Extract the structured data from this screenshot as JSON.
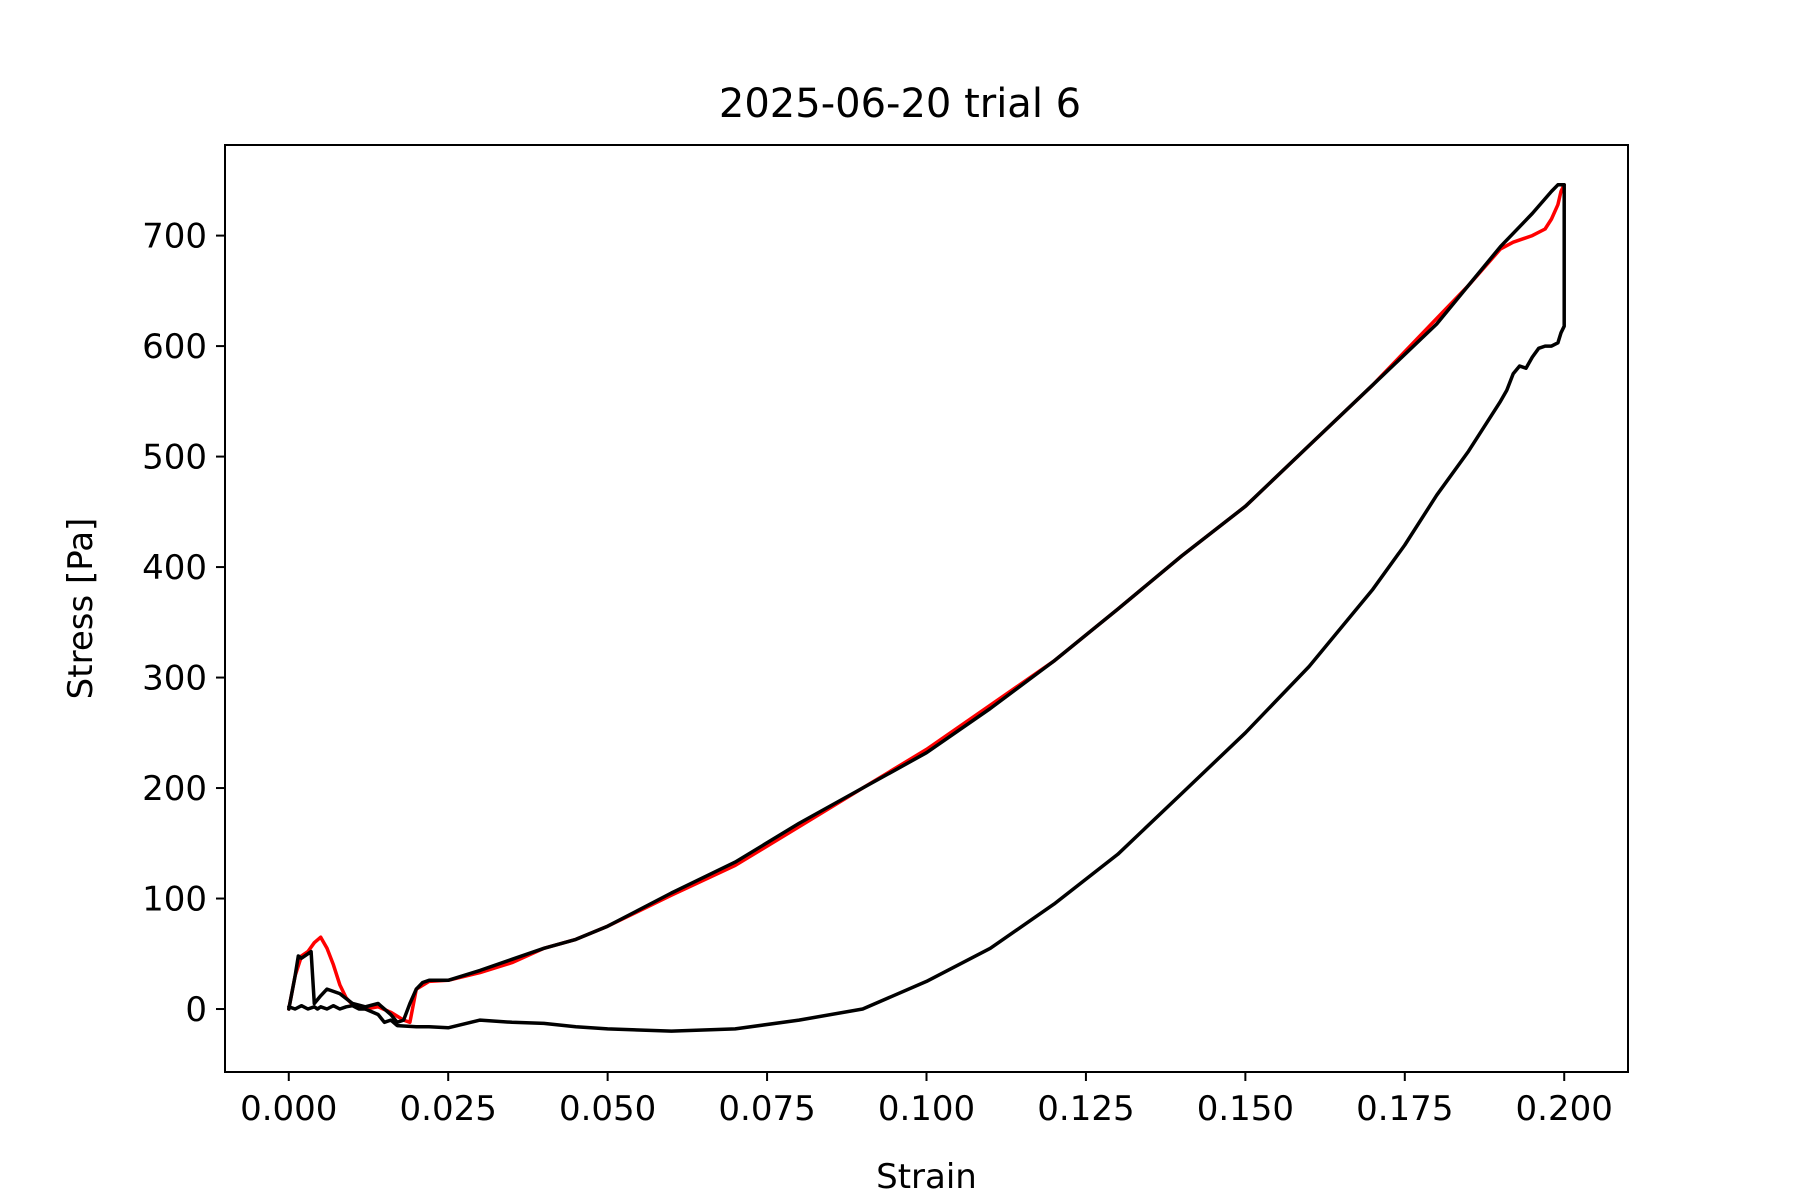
{
  "chart_data": {
    "type": "line",
    "title": "2025-06-20 trial 6",
    "xlabel": "Strain",
    "ylabel": "Stress [Pa]",
    "xlim": [
      -0.01,
      0.21
    ],
    "ylim": [
      -57,
      782
    ],
    "xticks": [
      0.0,
      0.025,
      0.05,
      0.075,
      0.1,
      0.125,
      0.15,
      0.175,
      0.2
    ],
    "xtick_labels": [
      "0.000",
      "0.025",
      "0.050",
      "0.075",
      "0.100",
      "0.125",
      "0.150",
      "0.175",
      "0.200"
    ],
    "yticks": [
      0,
      100,
      200,
      300,
      400,
      500,
      600,
      700
    ],
    "ytick_labels": [
      "0",
      "100",
      "200",
      "300",
      "400",
      "500",
      "600",
      "700"
    ],
    "grid": false,
    "series": [
      {
        "color": "#ff0000",
        "x": [
          0.0,
          0.001,
          0.002,
          0.003,
          0.004,
          0.005,
          0.006,
          0.007,
          0.008,
          0.009,
          0.01,
          0.012,
          0.014,
          0.016,
          0.018,
          0.019,
          0.02,
          0.022,
          0.025,
          0.03,
          0.035,
          0.04,
          0.045,
          0.05,
          0.06,
          0.07,
          0.08,
          0.09,
          0.1,
          0.11,
          0.12,
          0.13,
          0.14,
          0.15,
          0.16,
          0.17,
          0.18,
          0.185,
          0.19,
          0.192,
          0.195,
          0.197,
          0.198,
          0.199,
          0.1995,
          0.2
        ],
        "y": [
          0,
          30,
          48,
          52,
          60,
          65,
          55,
          40,
          22,
          10,
          4,
          0,
          2,
          -3,
          -10,
          -12,
          18,
          25,
          26,
          33,
          42,
          55,
          63,
          75,
          103,
          130,
          165,
          200,
          235,
          275,
          315,
          362,
          410,
          455,
          510,
          565,
          625,
          655,
          688,
          694,
          700,
          706,
          715,
          728,
          740,
          746
        ]
      },
      {
        "color": "#000000",
        "x": [
          0.0,
          0.001,
          0.0015,
          0.002,
          0.003,
          0.0035,
          0.004,
          0.005,
          0.006,
          0.008,
          0.01,
          0.012,
          0.014,
          0.016,
          0.017,
          0.018,
          0.019,
          0.02,
          0.021,
          0.022,
          0.025,
          0.03,
          0.035,
          0.04,
          0.045,
          0.05,
          0.06,
          0.07,
          0.08,
          0.09,
          0.1,
          0.11,
          0.12,
          0.13,
          0.14,
          0.15,
          0.16,
          0.17,
          0.18,
          0.185,
          0.19,
          0.195,
          0.198,
          0.199,
          0.2,
          0.2,
          0.2,
          0.1995,
          0.199,
          0.198,
          0.197,
          0.196,
          0.195,
          0.194,
          0.193,
          0.192,
          0.191,
          0.19,
          0.185,
          0.18,
          0.175,
          0.17,
          0.16,
          0.15,
          0.14,
          0.13,
          0.12,
          0.11,
          0.1,
          0.09,
          0.08,
          0.07,
          0.06,
          0.05,
          0.045,
          0.04,
          0.035,
          0.03,
          0.025,
          0.022,
          0.02,
          0.017,
          0.016,
          0.015,
          0.014,
          0.012,
          0.011,
          0.01,
          0.009,
          0.008,
          0.007,
          0.006,
          0.005,
          0.0045,
          0.004,
          0.003,
          0.002,
          0.001,
          0.0
        ],
        "y": [
          0,
          30,
          48,
          46,
          50,
          52,
          5,
          12,
          18,
          14,
          5,
          2,
          5,
          -5,
          -12,
          -10,
          5,
          18,
          24,
          26,
          26,
          35,
          45,
          55,
          63,
          75,
          105,
          133,
          168,
          200,
          232,
          272,
          315,
          362,
          410,
          455,
          510,
          565,
          620,
          655,
          690,
          720,
          740,
          746,
          746,
          650,
          618,
          612,
          603,
          600,
          600,
          598,
          590,
          580,
          582,
          575,
          560,
          550,
          505,
          465,
          420,
          380,
          310,
          250,
          195,
          140,
          95,
          55,
          25,
          0,
          -10,
          -18,
          -20,
          -18,
          -16,
          -13,
          -12,
          -10,
          -17,
          -16,
          -16,
          -15,
          -10,
          -12,
          -5,
          0,
          0,
          3,
          2,
          0,
          3,
          0,
          2,
          0,
          2,
          0,
          3,
          0,
          2
        ]
      }
    ]
  }
}
